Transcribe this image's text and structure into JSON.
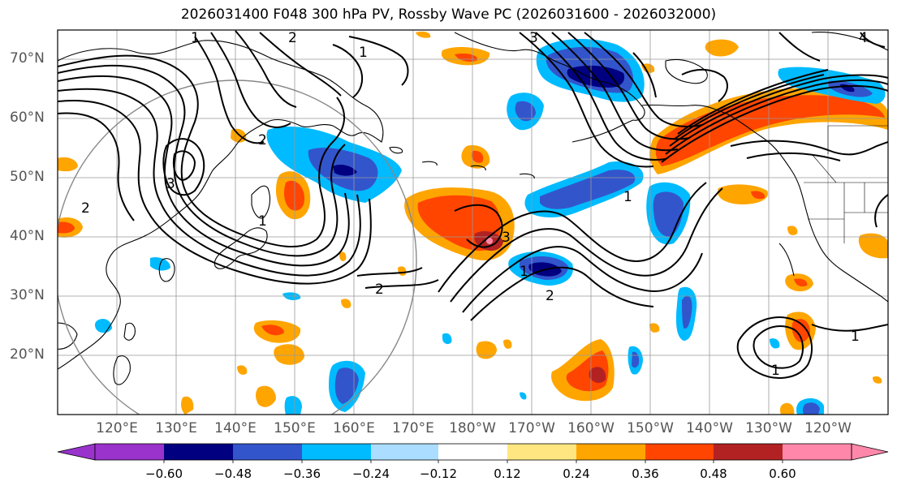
{
  "title": "2026031400 F048 300 hPa PV, Rossby Wave PC (2026031600 - 2026032000)",
  "lat_labels": [
    "70°N",
    "60°N",
    "50°N",
    "40°N",
    "30°N",
    "20°N"
  ],
  "lon_labels": [
    "120°E",
    "130°E",
    "140°E",
    "150°E",
    "160°E",
    "170°E",
    "180°W",
    "170°W",
    "160°W",
    "150°W",
    "140°W",
    "130°W",
    "120°W"
  ],
  "colorbar": {
    "ticks": [
      "−0.60",
      "−0.48",
      "−0.36",
      "−0.24",
      "−0.12",
      "0.12",
      "0.24",
      "0.36",
      "0.48",
      "0.60"
    ],
    "colors": [
      "#9933cc",
      "#000080",
      "#3355cc",
      "#00bbff",
      "#aaddff",
      "#ffffff",
      "#ffe680",
      "#ffa500",
      "#ff4500",
      "#b22222",
      "#ff88aa"
    ]
  },
  "contour_labels": [
    "2",
    "1",
    "2",
    "1",
    "3",
    "1",
    "2",
    "3",
    "1",
    "2",
    "3",
    "1",
    "1",
    "2",
    "4",
    "1"
  ]
}
